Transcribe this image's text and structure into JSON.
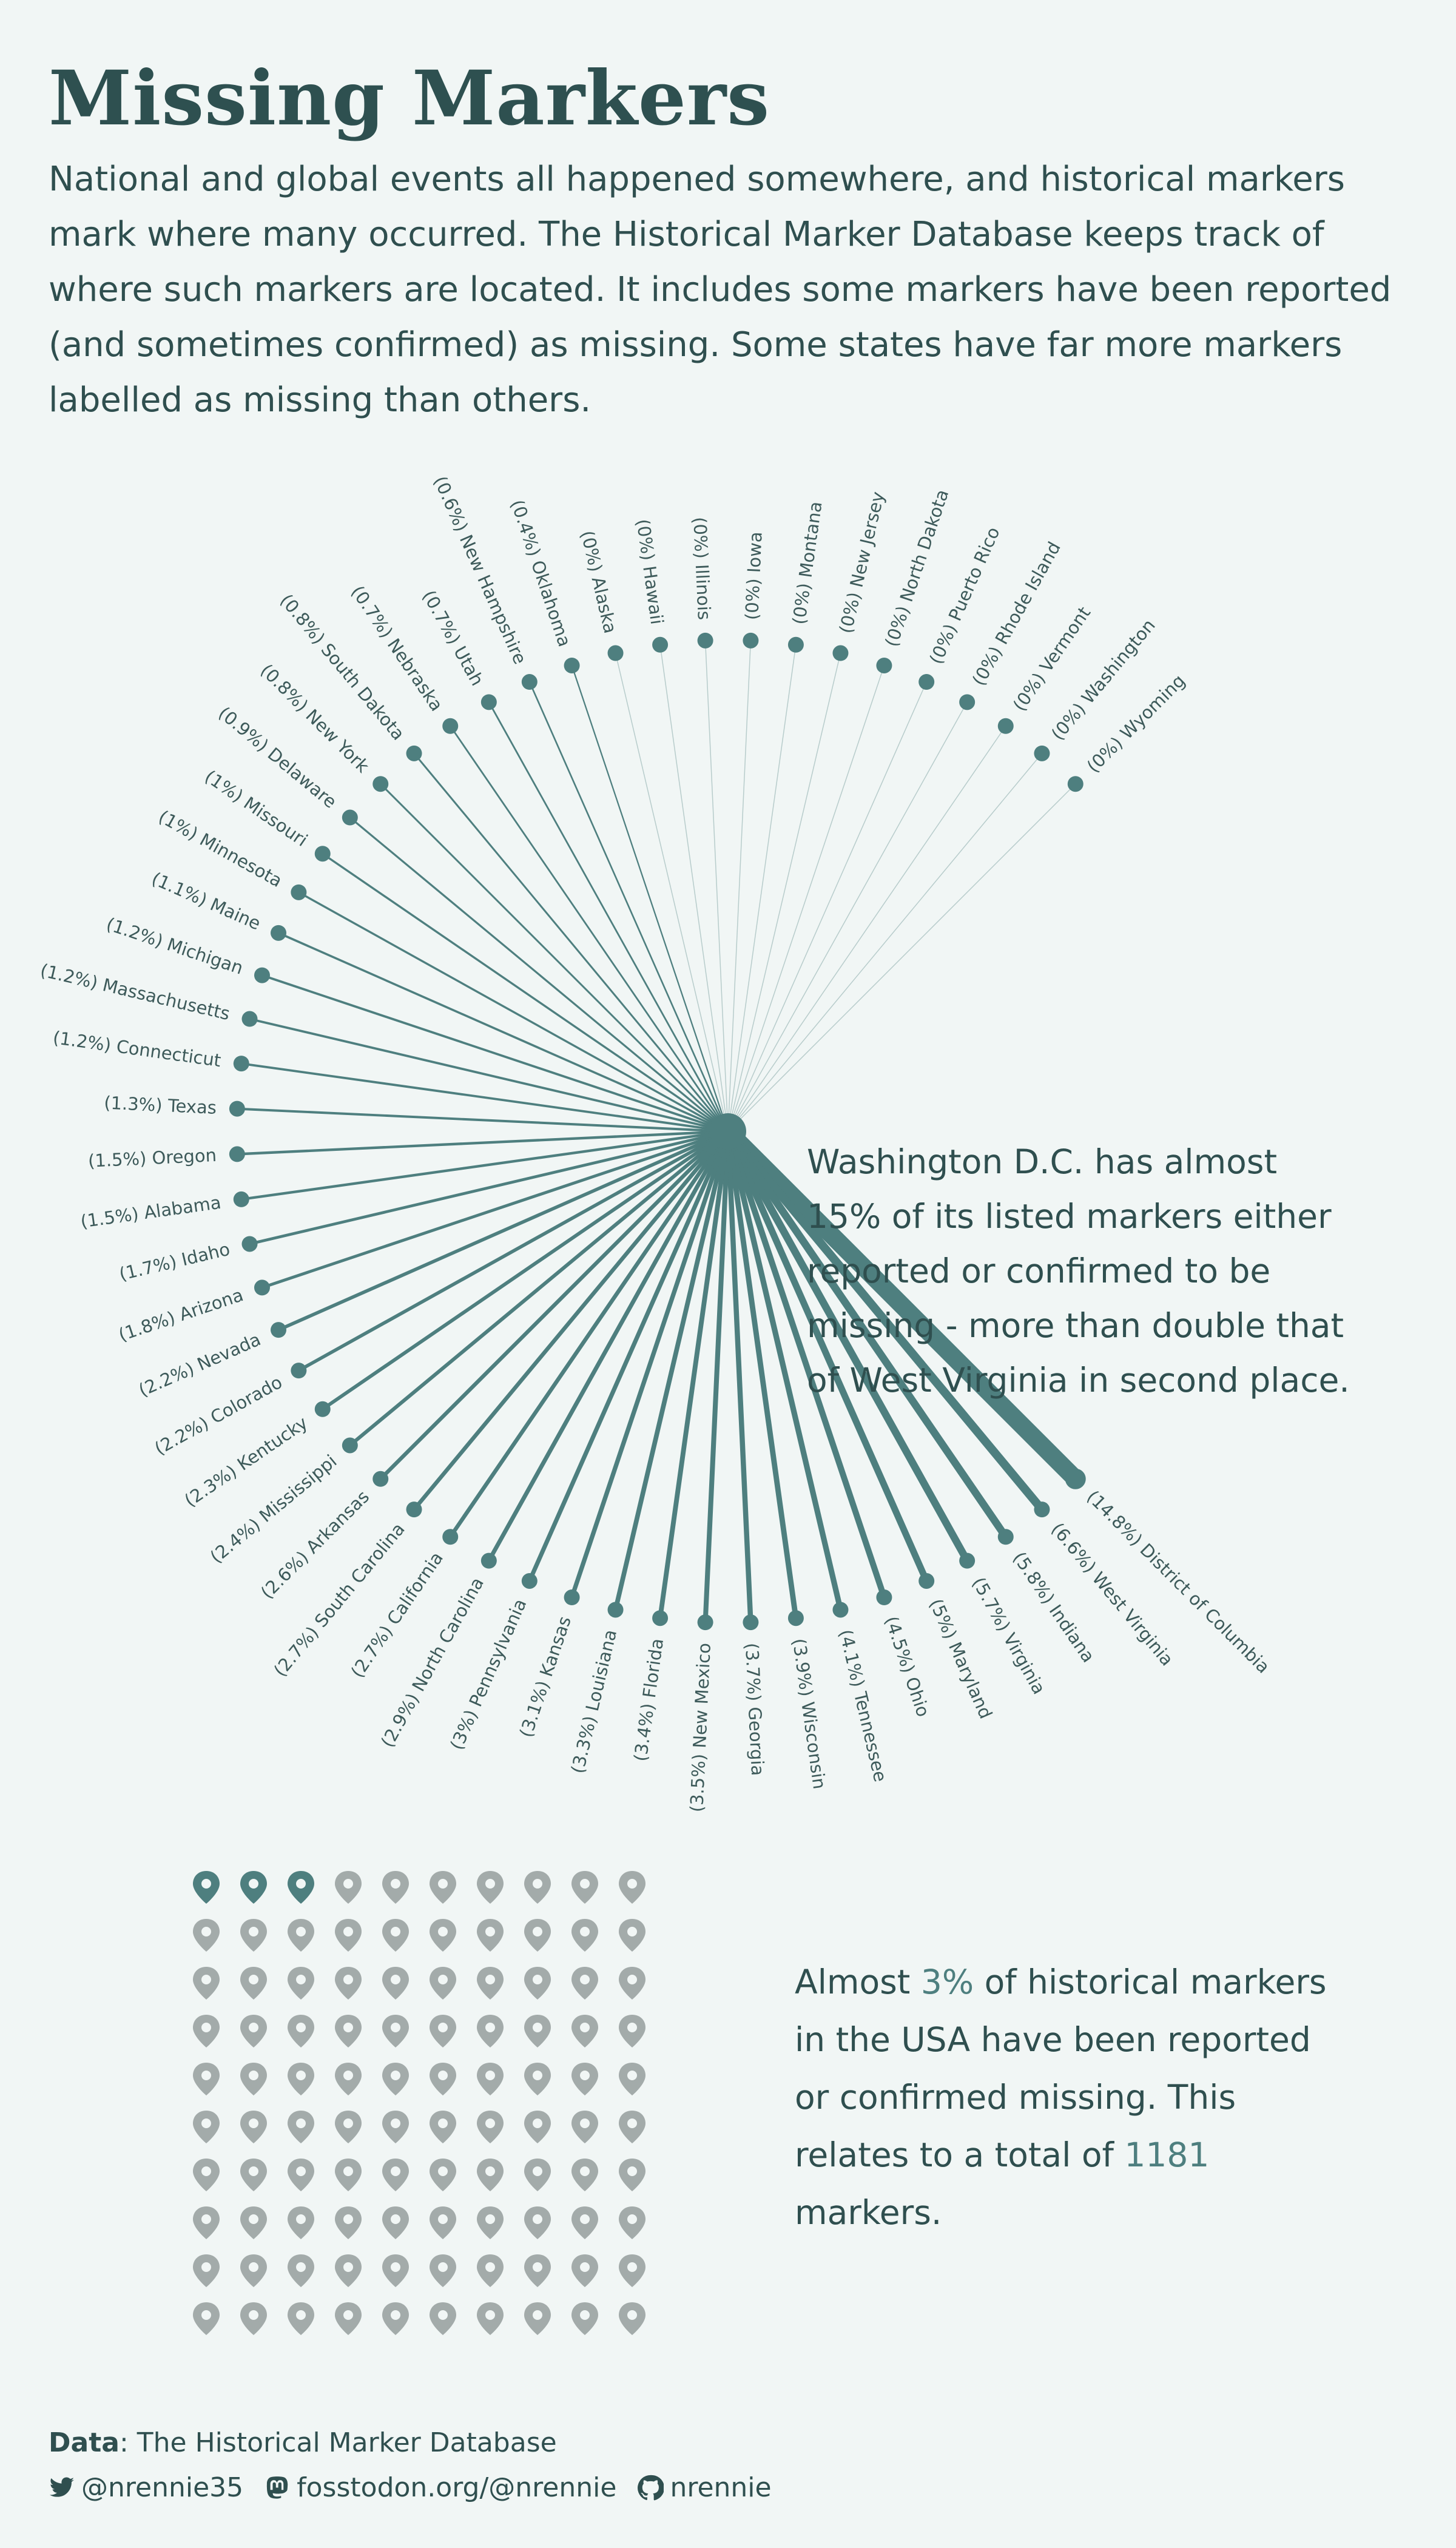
{
  "header": {
    "title": "Missing Markers",
    "intro": "National and global events all happened somewhere, and historical markers mark where many occurred. The Historical Marker Database keeps track of where such markers are located. It includes some markers have been reported (and sometimes confirmed) as missing. Some states have far more markers labelled as missing than others."
  },
  "callout": "Washington D.C. has almost 15% of its listed markers either reported or confirmed to be missing - more than double that of West Virginia in second place.",
  "summary": {
    "part1": "Almost ",
    "pct": "3%",
    "part2": " of historical markers in the USA have been reported or confirmed missing. This relates to a total of ",
    "total": "1181",
    "part3": " markers."
  },
  "footer": {
    "data_label": "Data",
    "data_source": ": The Historical Marker Database",
    "twitter": "@nrennie35",
    "mastodon": "fosstodon.org/@nrennie",
    "github": "nrennie",
    "twitter_icon": "twitter-icon",
    "mastodon_icon": "mastodon-icon",
    "github_icon": "github-icon"
  },
  "colors": {
    "background": "#f1f6f5",
    "accent": "#4e7f7f",
    "text": "#2f4f4f",
    "inactive": "#a3abaa"
  },
  "chart_data": [
    {
      "type": "radial-lollipop",
      "unit": "percent of markers missing",
      "categories": [
        "District of Columbia",
        "West Virginia",
        "Indiana",
        "Virginia",
        "Maryland",
        "Ohio",
        "Tennessee",
        "Wisconsin",
        "Georgia",
        "New Mexico",
        "Florida",
        "Louisiana",
        "Kansas",
        "Pennsylvania",
        "North Carolina",
        "California",
        "South Carolina",
        "Arkansas",
        "Mississippi",
        "Kentucky",
        "Colorado",
        "Nevada",
        "Arizona",
        "Idaho",
        "Alabama",
        "Oregon",
        "Texas",
        "Connecticut",
        "Massachusetts",
        "Michigan",
        "Maine",
        "Minnesota",
        "Missouri",
        "Delaware",
        "New York",
        "South Dakota",
        "Nebraska",
        "Utah",
        "New Hampshire",
        "Oklahoma",
        "Alaska",
        "Hawaii",
        "Illinois",
        "Iowa",
        "Montana",
        "New Jersey",
        "North Dakota",
        "Puerto Rico",
        "Rhode Island",
        "Vermont",
        "Washington",
        "Wyoming"
      ],
      "values": [
        14.8,
        6.6,
        5.8,
        5.7,
        5,
        4.5,
        4.1,
        3.9,
        3.7,
        3.5,
        3.4,
        3.3,
        3.1,
        3,
        2.9,
        2.7,
        2.7,
        2.6,
        2.4,
        2.3,
        2.2,
        2.2,
        1.8,
        1.7,
        1.5,
        1.5,
        1.3,
        1.2,
        1.2,
        1.2,
        1.1,
        1,
        1,
        0.9,
        0.8,
        0.8,
        0.7,
        0.7,
        0.6,
        0.4,
        0,
        0,
        0,
        0,
        0,
        0,
        0,
        0,
        0,
        0,
        0,
        0
      ]
    },
    {
      "type": "waffle",
      "rows": 10,
      "cols": 10,
      "highlighted": 3,
      "total": 100
    }
  ]
}
